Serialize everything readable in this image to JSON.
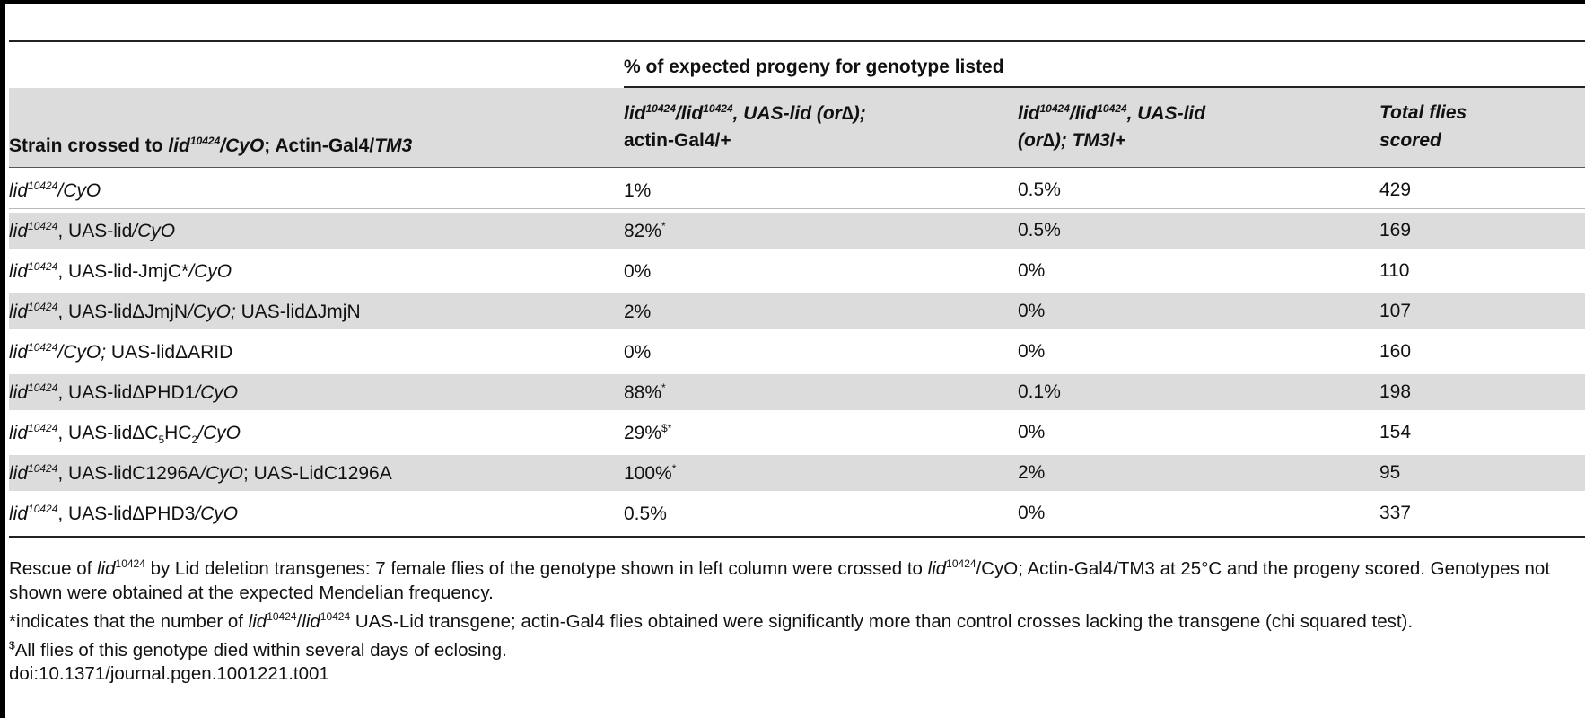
{
  "table": {
    "super_header": "% of expected progeny for genotype listed",
    "columns": {
      "col1": {
        "pre": "Strain crossed to ",
        "lid": "lid",
        "sup": "10424",
        "mid": "/",
        "cyo": "CyO",
        "mid2": "; Actin-Gal4/",
        "tm3": "TM3"
      },
      "col2": {
        "line1_a": "lid",
        "sup1": "10424",
        "line1_b": "/lid",
        "sup2": "10424",
        "line1_c": ", UAS-lid (or∆);",
        "line2": "actin-Gal4/+"
      },
      "col3": {
        "line1_a": "lid",
        "sup1": "10424",
        "line1_b": "/lid",
        "sup2": "10424",
        "line1_c": ", UAS-lid",
        "line2_a": "(or∆); ",
        "line2_b": "TM3",
        "line2_c": "/+"
      },
      "col4": {
        "line1": "Total flies",
        "line2": "scored"
      }
    },
    "rows": [
      {
        "lid": "lid",
        "sup": "10424",
        "rest": "",
        "cyo": "/CyO",
        "tail": "",
        "pct1": "1%",
        "mark1": "",
        "pct2": "0.5%",
        "total": "429"
      },
      {
        "lid": "lid",
        "sup": "10424",
        "rest": ", UAS-lid",
        "cyo": "/CyO",
        "tail": "",
        "pct1": "82%",
        "mark1": "*",
        "pct2": "0.5%",
        "total": "169"
      },
      {
        "lid": "lid",
        "sup": "10424",
        "rest": ", UAS-lid-JmjC*",
        "cyo": "/CyO",
        "tail": "",
        "pct1": "0%",
        "mark1": "",
        "pct2": "0%",
        "total": "110"
      },
      {
        "lid": "lid",
        "sup": "10424",
        "rest": ", UAS-lidΔJmjN",
        "cyo": "/CyO;",
        "tail": " UAS-lidΔJmjN",
        "pct1": "2%",
        "mark1": "",
        "pct2": "0%",
        "total": "107"
      },
      {
        "lid": "lid",
        "sup": "10424",
        "rest": "",
        "cyo": "/CyO;",
        "tail": " UAS-lidΔARID",
        "pct1": "0%",
        "mark1": "",
        "pct2": "0%",
        "total": "160"
      },
      {
        "lid": "lid",
        "sup": "10424",
        "rest": ", UAS-lidΔPHD1",
        "cyo": "/CyO",
        "tail": "",
        "pct1": "88%",
        "mark1": "*",
        "pct2": "0.1%",
        "total": "198"
      },
      {
        "lid": "lid",
        "sup": "10424",
        "rest": ", UAS-lidΔC",
        "sub1": "5",
        "rest2": "HC",
        "sub2": "2",
        "cyo": "/CyO",
        "tail": "",
        "pct1": "29%",
        "mark1": "$*",
        "pct2": "0%",
        "total": "154"
      },
      {
        "lid": "lid",
        "sup": "10424",
        "rest": ", UAS-lidC1296A",
        "cyo": "/CyO",
        "tail": "; UAS-LidC1296A",
        "pct1": "100%",
        "mark1": "*",
        "pct2": "2%",
        "total": "95"
      },
      {
        "lid": "lid",
        "sup": "10424",
        "rest": ", UAS-lidΔPHD3",
        "cyo": "/CyO",
        "tail": "",
        "pct1": "0.5%",
        "mark1": "",
        "pct2": "0%",
        "total": "337"
      }
    ]
  },
  "notes": {
    "n1_a": "Rescue of ",
    "n1_lid": "lid",
    "n1_sup": "10424",
    "n1_b": " by Lid deletion transgenes: 7 female flies of the genotype shown in left column were crossed to ",
    "n1_lid2": "lid",
    "n1_sup2": "10424",
    "n1_c": "/CyO; Actin-Gal4/TM3 at 25°C and the progeny scored. Genotypes not shown were obtained at the expected Mendelian frequency.",
    "n2_a": "*indicates that the number of ",
    "n2_lid": "lid",
    "n2_sup": "10424",
    "n2_b": "/",
    "n2_lid2": "lid",
    "n2_sup2": "10424",
    "n2_c": " UAS-Lid transgene; actin-Gal4 flies obtained were significantly more than control crosses lacking the transgene (chi squared test).",
    "n3_sup": "$",
    "n3_text": "All flies of this genotype died within several days of eclosing.",
    "doi": "doi:10.1371/journal.pgen.1001221.t001"
  }
}
